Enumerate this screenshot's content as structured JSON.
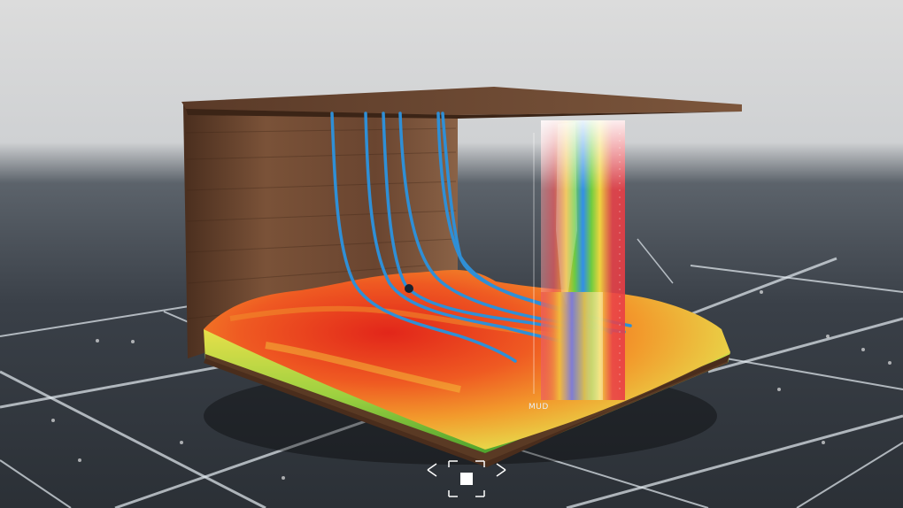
{
  "scene": {
    "log_panel": {
      "label": "MUD"
    },
    "wellbore_count": 6,
    "focus_widget": {
      "icon": "focus-target-icon"
    }
  },
  "colors": {
    "sky_top": "#d9d9d9",
    "floor": "#3a4048",
    "grid_line": "#e6ecf2",
    "rock": "#6b4a34",
    "well": "#2f8fd6",
    "terrain_high": "#e8361e",
    "terrain_low": "#7fc43a",
    "log_red": "#e8323a"
  }
}
